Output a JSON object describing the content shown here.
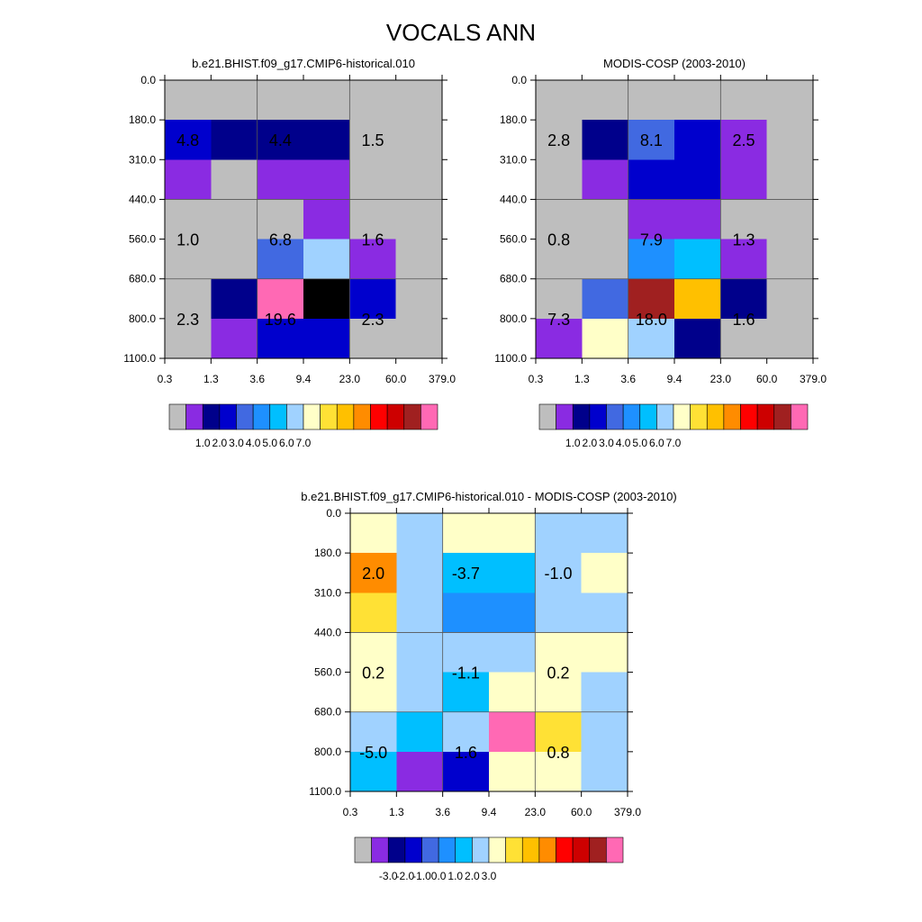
{
  "page": {
    "title": "VOCALS ANN"
  },
  "chart_data": [
    {
      "id": "model",
      "type": "heatmap",
      "title": "b.e21.BHIST.f09_g17.CMIP6-historical.010",
      "x_ticks": [
        "0.3",
        "1.3",
        "3.6",
        "9.4",
        "23.0",
        "60.0",
        "379.0"
      ],
      "y_ticks": [
        "0.0",
        "180.0",
        "310.0",
        "440.0",
        "560.0",
        "680.0",
        "800.0",
        "1100.0"
      ],
      "xlabel": "",
      "ylabel": "",
      "cells_note": "rows top-to-bottom (pressure bins), columns left-to-right (optical depth bins); values are color-bin indices into colorbar",
      "cells": [
        [
          0,
          0,
          0,
          0,
          0,
          0
        ],
        [
          3,
          2,
          2,
          2,
          0,
          0
        ],
        [
          1,
          0,
          1,
          1,
          0,
          0
        ],
        [
          0,
          0,
          0,
          1,
          0,
          0
        ],
        [
          0,
          0,
          4,
          7,
          1,
          0
        ],
        [
          0,
          2,
          15,
          16,
          3,
          0
        ],
        [
          0,
          1,
          3,
          3,
          0,
          0
        ]
      ],
      "annotations": [
        {
          "label": "4.8",
          "col": 0.5,
          "row": 1.5
        },
        {
          "label": "4.4",
          "col": 2.5,
          "row": 1.5
        },
        {
          "label": "1.5",
          "col": 4.5,
          "row": 1.5
        },
        {
          "label": "1.0",
          "col": 0.5,
          "row": 4.0
        },
        {
          "label": "6.8",
          "col": 2.5,
          "row": 4.0
        },
        {
          "label": "1.6",
          "col": 4.5,
          "row": 4.0
        },
        {
          "label": "2.3",
          "col": 0.5,
          "row": 6.0
        },
        {
          "label": "19.6",
          "col": 2.5,
          "row": 6.0
        },
        {
          "label": "2.3",
          "col": 4.5,
          "row": 6.0
        }
      ],
      "colorbar": {
        "colors": [
          "#bebebe",
          "#8a2be2",
          "#00008b",
          "#0000cd",
          "#4169e1",
          "#1e90ff",
          "#00bfff",
          "#a0d2ff",
          "#ffffc8",
          "#ffe135",
          "#ffc000",
          "#ff8c00",
          "#ff0000",
          "#cd0000",
          "#a02020",
          "#ff69b4"
        ],
        "labels": [
          "1.0",
          "2.0",
          "3.0",
          "4.0",
          "5.0",
          "6.0",
          "7.0"
        ],
        "label_start_boundary": 2
      }
    },
    {
      "id": "obs",
      "type": "heatmap",
      "title": "MODIS-COSP (2003-2010)",
      "x_ticks": [
        "0.3",
        "1.3",
        "3.6",
        "9.4",
        "23.0",
        "60.0",
        "379.0"
      ],
      "y_ticks": [
        "0.0",
        "180.0",
        "310.0",
        "440.0",
        "560.0",
        "680.0",
        "800.0",
        "1100.0"
      ],
      "xlabel": "",
      "ylabel": "",
      "cells": [
        [
          0,
          0,
          0,
          0,
          0,
          0
        ],
        [
          0,
          2,
          4,
          3,
          1,
          0
        ],
        [
          0,
          1,
          3,
          3,
          1,
          0
        ],
        [
          0,
          0,
          1,
          1,
          0,
          0
        ],
        [
          0,
          0,
          5,
          6,
          1,
          0
        ],
        [
          0,
          4,
          14,
          10,
          2,
          0
        ],
        [
          1,
          8,
          7,
          2,
          0,
          0
        ]
      ],
      "annotations": [
        {
          "label": "2.8",
          "col": 0.5,
          "row": 1.5
        },
        {
          "label": "8.1",
          "col": 2.5,
          "row": 1.5
        },
        {
          "label": "2.5",
          "col": 4.5,
          "row": 1.5
        },
        {
          "label": "0.8",
          "col": 0.5,
          "row": 4.0
        },
        {
          "label": "7.9",
          "col": 2.5,
          "row": 4.0
        },
        {
          "label": "1.3",
          "col": 4.5,
          "row": 4.0
        },
        {
          "label": "7.3",
          "col": 0.5,
          "row": 6.0
        },
        {
          "label": "18.0",
          "col": 2.5,
          "row": 6.0
        },
        {
          "label": "1.6",
          "col": 4.5,
          "row": 6.0
        }
      ],
      "colorbar": {
        "colors": [
          "#bebebe",
          "#8a2be2",
          "#00008b",
          "#0000cd",
          "#4169e1",
          "#1e90ff",
          "#00bfff",
          "#a0d2ff",
          "#ffffc8",
          "#ffe135",
          "#ffc000",
          "#ff8c00",
          "#ff0000",
          "#cd0000",
          "#a02020",
          "#ff69b4"
        ],
        "labels": [
          "1.0",
          "2.0",
          "3.0",
          "4.0",
          "5.0",
          "6.0",
          "7.0"
        ],
        "label_start_boundary": 2
      }
    },
    {
      "id": "diff",
      "type": "heatmap",
      "title": "b.e21.BHIST.f09_g17.CMIP6-historical.010 - MODIS-COSP (2003-2010)",
      "x_ticks": [
        "0.3",
        "1.3",
        "3.6",
        "9.4",
        "23.0",
        "60.0",
        "379.0"
      ],
      "y_ticks": [
        "0.0",
        "180.0",
        "310.0",
        "440.0",
        "560.0",
        "680.0",
        "800.0",
        "1100.0"
      ],
      "xlabel": "",
      "ylabel": "",
      "cells": [
        [
          8,
          7,
          8,
          8,
          7,
          7
        ],
        [
          11,
          7,
          6,
          6,
          7,
          8
        ],
        [
          9,
          7,
          5,
          5,
          7,
          7
        ],
        [
          8,
          7,
          7,
          7,
          8,
          8
        ],
        [
          8,
          7,
          6,
          8,
          8,
          7
        ],
        [
          7,
          6,
          7,
          15,
          9,
          7
        ],
        [
          6,
          1,
          3,
          8,
          8,
          7
        ]
      ],
      "annotations": [
        {
          "label": "2.0",
          "col": 0.5,
          "row": 1.5
        },
        {
          "label": "-3.7",
          "col": 2.5,
          "row": 1.5
        },
        {
          "label": "-1.0",
          "col": 4.5,
          "row": 1.5
        },
        {
          "label": "0.2",
          "col": 0.5,
          "row": 4.0
        },
        {
          "label": "-1.1",
          "col": 2.5,
          "row": 4.0
        },
        {
          "label": "0.2",
          "col": 4.5,
          "row": 4.0
        },
        {
          "label": "-5.0",
          "col": 0.5,
          "row": 6.0
        },
        {
          "label": "1.6",
          "col": 2.5,
          "row": 6.0
        },
        {
          "label": "0.8",
          "col": 4.5,
          "row": 6.0
        }
      ],
      "colorbar": {
        "colors": [
          "#bebebe",
          "#8a2be2",
          "#00008b",
          "#0000cd",
          "#4169e1",
          "#1e90ff",
          "#00bfff",
          "#a0d2ff",
          "#ffffc8",
          "#ffe135",
          "#ffc000",
          "#ff8c00",
          "#ff0000",
          "#cd0000",
          "#a02020",
          "#ff69b4"
        ],
        "labels": [
          "-3.0",
          "-2.0",
          "-1.0",
          "0.0",
          "1.0",
          "2.0",
          "3.0"
        ],
        "label_start_boundary": 2
      }
    }
  ]
}
